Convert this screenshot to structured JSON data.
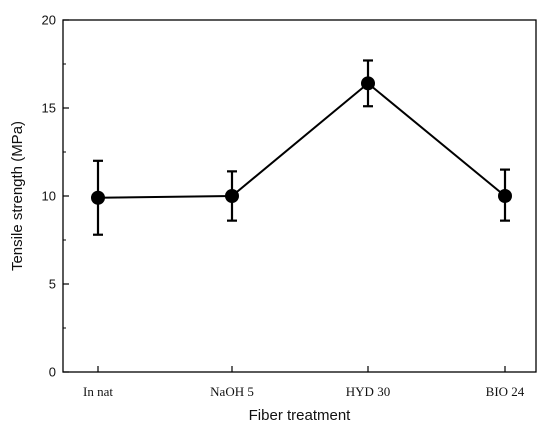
{
  "chart_data": {
    "type": "line",
    "title": "",
    "xlabel": "Fiber treatment",
    "ylabel": "Tensile strength (MPa)",
    "categories": [
      "In nat",
      "NaOH 5",
      "HYD 30",
      "BIO 24"
    ],
    "ylim": [
      0,
      20
    ],
    "yticks": [
      0,
      5,
      10,
      15,
      20
    ],
    "grid": false,
    "legend": "none",
    "series": [
      {
        "values": [
          9.9,
          10.0,
          16.4,
          10.0
        ],
        "error_low": [
          7.8,
          8.6,
          15.1,
          8.6
        ],
        "error_high": [
          12.0,
          11.4,
          17.7,
          11.5
        ]
      }
    ],
    "colors": {
      "line": "#000000",
      "marker": "#000000",
      "axis": "#000000"
    }
  }
}
